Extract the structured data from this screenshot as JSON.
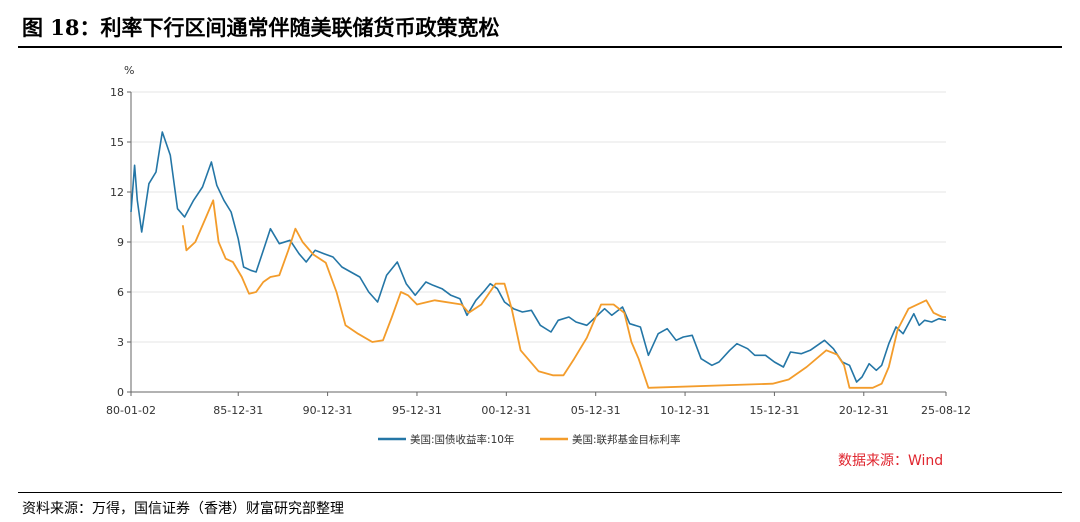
{
  "header": {
    "title": "图 18：利率下行区间通常伴随美联储货币政策宽松"
  },
  "footer": {
    "source": "资料来源：万得，国信证券（香港）财富研究部整理"
  },
  "chart_data": {
    "type": "line",
    "ylabel": "%",
    "ylim": [
      0,
      18
    ],
    "yticks": [
      0,
      3,
      6,
      9,
      12,
      15,
      18
    ],
    "xlim": [
      1980.0,
      2025.6
    ],
    "xticks": [
      "80-01-02",
      "85-12-31",
      "90-12-31",
      "95-12-31",
      "00-12-31",
      "05-12-31",
      "10-12-31",
      "15-12-31",
      "20-12-31",
      "25-08-12"
    ],
    "xtick_years": [
      1980.0,
      1986.0,
      1991.0,
      1996.0,
      2001.0,
      2006.0,
      2011.0,
      2016.0,
      2021.0,
      2025.6
    ],
    "grid": "horizontal",
    "legend_position": "bottom",
    "source_note": "数据来源：Wind",
    "series": [
      {
        "name": "美国:国债收益率:10年",
        "color": "#2476a6",
        "x": [
          1980.0,
          1980.2,
          1980.35,
          1980.6,
          1981.0,
          1981.4,
          1981.75,
          1982.2,
          1982.6,
          1983.0,
          1983.5,
          1984.0,
          1984.5,
          1984.8,
          1985.2,
          1985.6,
          1986.0,
          1986.3,
          1986.7,
          1987.0,
          1987.5,
          1987.8,
          1988.3,
          1988.9,
          1989.4,
          1989.8,
          1990.3,
          1990.8,
          1991.3,
          1991.8,
          1992.3,
          1992.8,
          1993.3,
          1993.8,
          1994.3,
          1994.9,
          1995.4,
          1995.9,
          1996.5,
          1996.9,
          1997.4,
          1997.9,
          1998.4,
          1998.8,
          1999.3,
          1999.8,
          2000.1,
          2000.5,
          2000.9,
          2001.4,
          2001.9,
          2002.4,
          2002.9,
          2003.5,
          2003.9,
          2004.5,
          2004.9,
          2005.5,
          2005.9,
          2006.5,
          2006.9,
          2007.5,
          2007.9,
          2008.5,
          2008.95,
          2009.5,
          2010.0,
          2010.5,
          2010.9,
          2011.4,
          2011.9,
          2012.5,
          2012.9,
          2013.5,
          2013.9,
          2014.5,
          2014.9,
          2015.5,
          2016.0,
          2016.5,
          2016.9,
          2017.5,
          2018.0,
          2018.8,
          2019.3,
          2019.8,
          2020.2,
          2020.6,
          2020.9,
          2021.3,
          2021.7,
          2022.0,
          2022.4,
          2022.8,
          2023.2,
          2023.8,
          2024.1,
          2024.4,
          2024.8,
          2025.2,
          2025.6
        ],
        "values": [
          10.8,
          13.6,
          11.5,
          9.6,
          12.5,
          13.2,
          15.6,
          14.2,
          11.0,
          10.5,
          11.5,
          12.3,
          13.8,
          12.4,
          11.5,
          10.8,
          9.2,
          7.5,
          7.3,
          7.2,
          8.8,
          9.8,
          8.9,
          9.1,
          8.3,
          7.8,
          8.5,
          8.3,
          8.1,
          7.5,
          7.2,
          6.9,
          6.0,
          5.4,
          7.0,
          7.8,
          6.5,
          5.8,
          6.6,
          6.4,
          6.2,
          5.8,
          5.6,
          4.6,
          5.5,
          6.1,
          6.5,
          6.2,
          5.4,
          5.0,
          4.8,
          4.9,
          4.0,
          3.6,
          4.3,
          4.5,
          4.2,
          4.0,
          4.4,
          5.0,
          4.6,
          5.1,
          4.1,
          3.9,
          2.2,
          3.5,
          3.8,
          3.1,
          3.3,
          3.4,
          2.0,
          1.6,
          1.8,
          2.5,
          2.9,
          2.6,
          2.2,
          2.2,
          1.8,
          1.5,
          2.4,
          2.3,
          2.5,
          3.1,
          2.6,
          1.8,
          1.6,
          0.6,
          0.9,
          1.7,
          1.3,
          1.6,
          2.9,
          3.9,
          3.5,
          4.7,
          4.0,
          4.3,
          4.2,
          4.4,
          4.3
        ]
      },
      {
        "name": "美国:联邦基金目标利率",
        "color": "#f39c2b",
        "x": [
          1982.9,
          1983.1,
          1983.6,
          1984.2,
          1984.6,
          1984.9,
          1985.3,
          1985.7,
          1986.2,
          1986.6,
          1987.0,
          1987.4,
          1987.8,
          1988.3,
          1988.8,
          1989.2,
          1989.6,
          1990.2,
          1990.9,
          1991.5,
          1992.0,
          1992.7,
          1993.5,
          1994.1,
          1994.6,
          1995.1,
          1995.5,
          1996.0,
          1997.0,
          1998.5,
          1998.9,
          1999.6,
          2000.4,
          2000.9,
          2001.3,
          2001.8,
          2002.8,
          2003.6,
          2004.2,
          2004.8,
          2005.5,
          2006.3,
          2007.0,
          2007.6,
          2008.0,
          2008.4,
          2008.95,
          2015.9,
          2016.8,
          2017.8,
          2018.9,
          2019.5,
          2019.9,
          2020.2,
          2021.5,
          2022.0,
          2022.4,
          2022.9,
          2023.5,
          2024.5,
          2024.9,
          2025.4,
          2025.6
        ],
        "values": [
          10.0,
          8.5,
          9.0,
          10.5,
          11.5,
          9.0,
          8.0,
          7.8,
          6.9,
          5.9,
          6.0,
          6.6,
          6.9,
          7.0,
          8.5,
          9.8,
          9.0,
          8.25,
          7.75,
          6.0,
          4.0,
          3.5,
          3.0,
          3.1,
          4.5,
          6.0,
          5.8,
          5.25,
          5.5,
          5.25,
          4.75,
          5.25,
          6.5,
          6.5,
          5.0,
          2.5,
          1.25,
          1.0,
          1.0,
          2.0,
          3.25,
          5.25,
          5.25,
          4.75,
          3.0,
          2.0,
          0.25,
          0.5,
          0.75,
          1.5,
          2.5,
          2.25,
          1.6,
          0.25,
          0.25,
          0.5,
          1.5,
          3.75,
          5.0,
          5.5,
          4.75,
          4.5,
          4.5
        ]
      }
    ]
  }
}
